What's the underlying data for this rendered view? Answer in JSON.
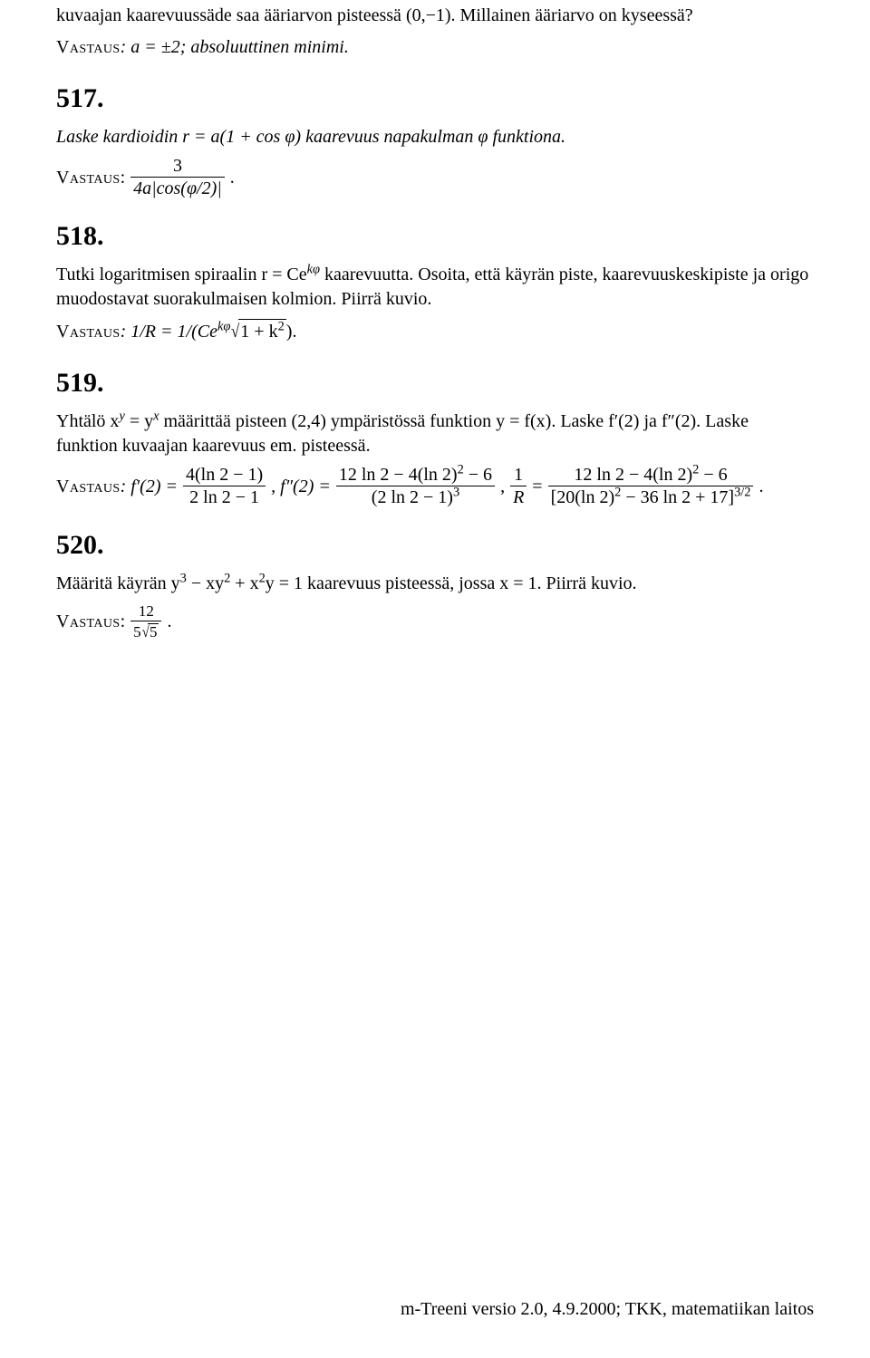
{
  "font": {
    "body_pt": 20,
    "heading_pt": 30,
    "color": "#000000",
    "bg": "#ffffff"
  },
  "intro": {
    "line1": "kuvaajan kaarevuussäde saa ääriarvon pisteessä (0,−1). Millainen ääriarvo on kyseessä?",
    "answer_label": "Vastaus",
    "answer_text": ": a = ±2; absoluuttinen minimi."
  },
  "p517": {
    "num": "517.",
    "body": "Laske kardioidin r = a(1 + cos φ) kaarevuus napakulman φ funktiona.",
    "answer_label": "Vastaus",
    "answer_colon": ":",
    "frac_num": "3",
    "frac_den": "4a|cos(φ/2)|",
    "period": "."
  },
  "p518": {
    "num": "518.",
    "body_a": "Tutki logaritmisen spiraalin r = Ce",
    "body_exp": "kφ",
    "body_b": " kaarevuutta. Osoita, että käyrän piste, kaarevuuskeskipiste ja origo muodostavat suorakulmaisen kolmion. Piirrä kuvio.",
    "answer_label": "Vastaus",
    "answer_a": ": 1/R = 1/(Ce",
    "answer_exp": "kφ",
    "sqrt_body": "1 + k",
    "sqrt_exp": "2",
    "answer_tail": ")."
  },
  "p519": {
    "num": "519.",
    "body_a": "Yhtälö x",
    "xy_sup": "y",
    "body_b": " = y",
    "yx_sup": "x",
    "body_c": " määrittää pisteen (2,4) ympäristössä funktion y = f(x). Laske f′(2) ja f″(2). Laske funktion kuvaajan kaarevuus em. pisteessä.",
    "answer_label": "Vastaus",
    "lead": ": f′(2) =",
    "f1_num": "4(ln 2 − 1)",
    "f1_den": "2 ln 2 − 1",
    "mid1": ", f″(2) =",
    "f2_num_a": "12 ln 2 − 4(ln 2)",
    "f2_num_exp": "2",
    "f2_num_b": " − 6",
    "f2_den_a": "(2 ln 2 − 1)",
    "f2_den_exp": "3",
    "mid2": ",",
    "oneR_num": "1",
    "oneR_den": "R",
    "eq": "=",
    "rhs_num_a": "12 ln 2 − 4(ln 2)",
    "rhs_num_exp": "2",
    "rhs_num_b": " − 6",
    "rhs_den_a": "[20(ln 2)",
    "rhs_den_exp1": "2",
    "rhs_den_b": " − 36 ln 2 + 17]",
    "rhs_den_exp2": "3/2",
    "period": "."
  },
  "p520": {
    "num": "520.",
    "body_a": "Määritä käyrän y",
    "e1": "3",
    "body_b": " − xy",
    "e2": "2",
    "body_c": " + x",
    "e3": "2",
    "body_d": "y = 1 kaarevuus pisteessä, jossa x = 1. Piirrä kuvio.",
    "answer_label": "Vastaus",
    "answer_colon": ":",
    "frac_num": "12",
    "frac_den_a": "5",
    "frac_den_sqrt": "5",
    "period": "."
  },
  "footer": "m-Treeni versio 2.0, 4.9.2000; TKK, matematiikan laitos"
}
